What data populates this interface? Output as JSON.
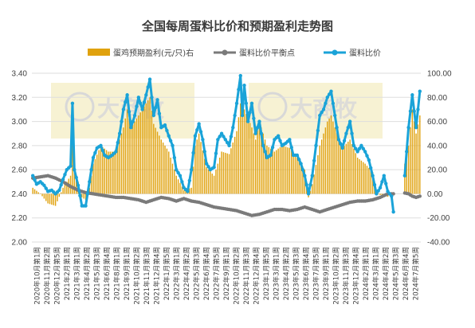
{
  "chart_data": {
    "type": "bar+line",
    "title": "全国每周蛋料比价和预期盈利走势图",
    "legend": {
      "placement": "top",
      "items": [
        {
          "label": "蛋鸡预期盈利(元/只)右",
          "kind": "bar",
          "color": "#e0a20e"
        },
        {
          "label": "蛋料比价平衡点",
          "kind": "line",
          "color": "#7a7a7a"
        },
        {
          "label": "蛋料比价",
          "kind": "line",
          "color": "#1aa3d8"
        }
      ]
    },
    "y_left": {
      "min": 2.0,
      "max": 3.4,
      "step": 0.2,
      "ticks": [
        "2.00",
        "2.20",
        "2.40",
        "2.60",
        "2.80",
        "3.00",
        "3.20",
        "3.40"
      ]
    },
    "y_right": {
      "min": -40,
      "max": 100,
      "step": 20,
      "ticks": [
        "-40.00",
        "-20.00",
        "0.00",
        "20.00",
        "40.00",
        "60.00",
        "80.00",
        "100.00"
      ]
    },
    "grid": true,
    "x_tick_labels": [
      "2020年10月第1周",
      "2020年11月第2周",
      "2020年12月第5周",
      "2021年2月第1周",
      "2021年3月第1周",
      "2021年4月第2周",
      "2021年5月第3周",
      "2021年6月第4周",
      "2021年8月第1周",
      "2021年9月第1周",
      "2021年10月第2周",
      "2021年11月第3周",
      "2021年12月第4周",
      "2022年1月第5周",
      "2022年3月第1周",
      "2022年4月第2周",
      "2022年5月第3周",
      "2022年6月第4周",
      "2022年7月第5周",
      "2022年9月第1周",
      "2022年10月第2周",
      "2022年11月第3周",
      "2022年12月第4周",
      "2023年1月第5周",
      "2023年3月第1周",
      "2023年4月第2周",
      "2023年5月第3周",
      "2023年6月第4周",
      "2023年7月第5周",
      "2023年9月第1周",
      "2023年10月第2周",
      "2023年11月第3周",
      "2023年12月第4周",
      "2024年2月第1周",
      "2024年3月第1周",
      "2024年4月第2周",
      "2024年5月第3周",
      "2024年6月第4周",
      "2024年7月第5周"
    ],
    "series_points": 206,
    "series": [
      {
        "name": "蛋料比价",
        "axis": "left",
        "color": "#1aa3d8",
        "anchors": [
          [
            0,
            2.55
          ],
          [
            2,
            2.48
          ],
          [
            4,
            2.5
          ],
          [
            6,
            2.47
          ],
          [
            8,
            2.42
          ],
          [
            10,
            2.43
          ],
          [
            12,
            2.4
          ],
          [
            14,
            2.43
          ],
          [
            16,
            2.52
          ],
          [
            18,
            2.6
          ],
          [
            20,
            2.63
          ],
          [
            21,
            3.15
          ],
          [
            22,
            2.6
          ],
          [
            24,
            2.47
          ],
          [
            26,
            2.3
          ],
          [
            28,
            2.3
          ],
          [
            30,
            2.5
          ],
          [
            32,
            2.7
          ],
          [
            34,
            2.78
          ],
          [
            36,
            2.8
          ],
          [
            38,
            2.72
          ],
          [
            40,
            2.7
          ],
          [
            42,
            2.72
          ],
          [
            44,
            2.75
          ],
          [
            46,
            2.9
          ],
          [
            48,
            3.1
          ],
          [
            50,
            3.22
          ],
          [
            51,
            3.08
          ],
          [
            52,
            2.95
          ],
          [
            54,
            3.05
          ],
          [
            56,
            3.2
          ],
          [
            58,
            3.1
          ],
          [
            60,
            3.22
          ],
          [
            62,
            3.35
          ],
          [
            64,
            3.05
          ],
          [
            66,
            3.18
          ],
          [
            68,
            2.95
          ],
          [
            70,
            2.97
          ],
          [
            72,
            2.88
          ],
          [
            74,
            2.8
          ],
          [
            76,
            2.6
          ],
          [
            78,
            2.55
          ],
          [
            80,
            2.45
          ],
          [
            82,
            2.42
          ],
          [
            84,
            2.6
          ],
          [
            86,
            2.88
          ],
          [
            88,
            2.98
          ],
          [
            90,
            2.85
          ],
          [
            92,
            2.65
          ],
          [
            94,
            2.6
          ],
          [
            96,
            2.62
          ],
          [
            98,
            2.85
          ],
          [
            100,
            2.9
          ],
          [
            102,
            2.85
          ],
          [
            104,
            2.8
          ],
          [
            106,
            2.95
          ],
          [
            108,
            3.15
          ],
          [
            110,
            3.38
          ],
          [
            111,
            3.05
          ],
          [
            112,
            3.3
          ],
          [
            114,
            3.0
          ],
          [
            116,
            3.15
          ],
          [
            118,
            2.9
          ],
          [
            120,
            3.0
          ],
          [
            122,
            2.8
          ],
          [
            124,
            2.7
          ],
          [
            126,
            2.72
          ],
          [
            128,
            2.85
          ],
          [
            130,
            2.88
          ],
          [
            132,
            2.8
          ],
          [
            134,
            2.82
          ],
          [
            136,
            2.85
          ],
          [
            138,
            2.72
          ],
          [
            140,
            2.72
          ],
          [
            142,
            2.65
          ],
          [
            144,
            2.55
          ],
          [
            146,
            2.4
          ],
          [
            148,
            2.55
          ],
          [
            150,
            2.8
          ],
          [
            152,
            3.05
          ],
          [
            154,
            3.1
          ],
          [
            156,
            3.2
          ],
          [
            158,
            3.25
          ],
          [
            160,
            3.05
          ],
          [
            162,
            2.85
          ],
          [
            164,
            2.78
          ],
          [
            166,
            2.9
          ],
          [
            168,
            3.0
          ],
          [
            170,
            2.8
          ],
          [
            172,
            2.75
          ],
          [
            174,
            2.8
          ],
          [
            176,
            2.75
          ],
          [
            178,
            2.68
          ],
          [
            180,
            2.55
          ],
          [
            182,
            2.4
          ],
          [
            184,
            2.45
          ],
          [
            186,
            2.55
          ],
          [
            188,
            2.42
          ],
          [
            190,
            2.38
          ],
          [
            191,
            2.25
          ],
          [
            194,
            2.4
          ],
          [
            197,
            2.55
          ],
          [
            199,
            2.95
          ],
          [
            201,
            3.22
          ],
          [
            203,
            2.95
          ],
          [
            205,
            3.25
          ]
        ]
      },
      {
        "name": "蛋料比价平衡点",
        "axis": "left",
        "color": "#7a7a7a",
        "anchors": [
          [
            0,
            2.53
          ],
          [
            4,
            2.54
          ],
          [
            8,
            2.55
          ],
          [
            12,
            2.53
          ],
          [
            16,
            2.5
          ],
          [
            20,
            2.46
          ],
          [
            24,
            2.43
          ],
          [
            28,
            2.41
          ],
          [
            32,
            2.4
          ],
          [
            36,
            2.39
          ],
          [
            40,
            2.38
          ],
          [
            44,
            2.37
          ],
          [
            48,
            2.37
          ],
          [
            52,
            2.36
          ],
          [
            56,
            2.35
          ],
          [
            60,
            2.33
          ],
          [
            64,
            2.35
          ],
          [
            68,
            2.37
          ],
          [
            72,
            2.36
          ],
          [
            76,
            2.34
          ],
          [
            80,
            2.36
          ],
          [
            84,
            2.34
          ],
          [
            88,
            2.33
          ],
          [
            92,
            2.31
          ],
          [
            96,
            2.29
          ],
          [
            100,
            2.28
          ],
          [
            104,
            2.27
          ],
          [
            108,
            2.26
          ],
          [
            112,
            2.24
          ],
          [
            116,
            2.22
          ],
          [
            120,
            2.23
          ],
          [
            124,
            2.25
          ],
          [
            128,
            2.27
          ],
          [
            132,
            2.27
          ],
          [
            136,
            2.26
          ],
          [
            140,
            2.27
          ],
          [
            144,
            2.29
          ],
          [
            148,
            2.27
          ],
          [
            152,
            2.25
          ],
          [
            156,
            2.27
          ],
          [
            160,
            2.29
          ],
          [
            164,
            2.31
          ],
          [
            168,
            2.33
          ],
          [
            172,
            2.34
          ],
          [
            176,
            2.34
          ],
          [
            180,
            2.35
          ],
          [
            184,
            2.37
          ],
          [
            188,
            2.4
          ],
          [
            192,
            2.4
          ],
          [
            196,
            2.41
          ],
          [
            199,
            2.4
          ],
          [
            201,
            2.38
          ],
          [
            203,
            2.37
          ],
          [
            205,
            2.38
          ]
        ]
      },
      {
        "name": "蛋鸡预期盈利(元/只)右",
        "axis": "right",
        "type": "bar",
        "color": "#e0a20e",
        "anchors": [
          [
            0,
            5
          ],
          [
            4,
            0
          ],
          [
            8,
            -8
          ],
          [
            12,
            -10
          ],
          [
            16,
            5
          ],
          [
            20,
            15
          ],
          [
            21,
            60
          ],
          [
            22,
            20
          ],
          [
            24,
            10
          ],
          [
            26,
            -3
          ],
          [
            28,
            -5
          ],
          [
            30,
            5
          ],
          [
            32,
            25
          ],
          [
            36,
            40
          ],
          [
            40,
            35
          ],
          [
            44,
            35
          ],
          [
            48,
            55
          ],
          [
            50,
            70
          ],
          [
            52,
            55
          ],
          [
            56,
            65
          ],
          [
            60,
            75
          ],
          [
            62,
            80
          ],
          [
            64,
            58
          ],
          [
            68,
            45
          ],
          [
            72,
            35
          ],
          [
            76,
            15
          ],
          [
            80,
            3
          ],
          [
            84,
            5
          ],
          [
            86,
            40
          ],
          [
            88,
            50
          ],
          [
            92,
            22
          ],
          [
            96,
            15
          ],
          [
            100,
            35
          ],
          [
            104,
            33
          ],
          [
            108,
            52
          ],
          [
            110,
            75
          ],
          [
            112,
            70
          ],
          [
            116,
            55
          ],
          [
            118,
            45
          ],
          [
            120,
            60
          ],
          [
            124,
            40
          ],
          [
            128,
            35
          ],
          [
            132,
            40
          ],
          [
            136,
            38
          ],
          [
            140,
            30
          ],
          [
            142,
            25
          ],
          [
            144,
            20
          ],
          [
            146,
            -3
          ],
          [
            148,
            8
          ],
          [
            152,
            40
          ],
          [
            156,
            60
          ],
          [
            158,
            65
          ],
          [
            160,
            55
          ],
          [
            164,
            38
          ],
          [
            168,
            45
          ],
          [
            172,
            30
          ],
          [
            176,
            25
          ],
          [
            180,
            18
          ],
          [
            182,
            0
          ],
          [
            186,
            -2
          ],
          [
            190,
            -3
          ],
          [
            194,
            15
          ],
          [
            197,
            25
          ],
          [
            199,
            40
          ],
          [
            201,
            70
          ],
          [
            203,
            50
          ],
          [
            205,
            65
          ]
        ],
        "gaps": [
          [
            189,
            196
          ]
        ]
      }
    ],
    "line_gaps": [
      [
        192,
        196
      ]
    ]
  },
  "watermarks": [
    {
      "text": "大商牧"
    },
    {
      "text": "大商牧"
    }
  ]
}
